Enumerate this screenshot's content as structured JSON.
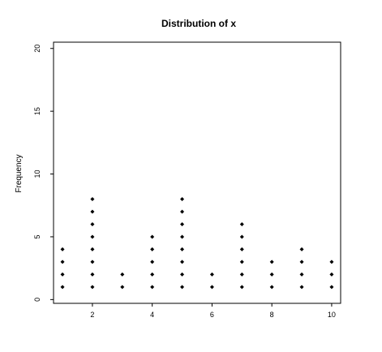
{
  "chart_data": {
    "type": "scatter",
    "subtype": "dot-plot",
    "title": "Distribution of x",
    "xlabel": "",
    "ylabel": "Frequency",
    "xlim": [
      0.7,
      10.3
    ],
    "ylim": [
      -0.3,
      20.5
    ],
    "x_ticks": [
      "2",
      "4",
      "6",
      "8",
      "10"
    ],
    "y_ticks": [
      "0",
      "5",
      "10",
      "15",
      "20"
    ],
    "grid": false,
    "legend": "none",
    "marker_color": "#000000",
    "counts": [
      {
        "x": 1,
        "count": 4
      },
      {
        "x": 2,
        "count": 8
      },
      {
        "x": 3,
        "count": 2
      },
      {
        "x": 4,
        "count": 5
      },
      {
        "x": 5,
        "count": 8
      },
      {
        "x": 6,
        "count": 2
      },
      {
        "x": 7,
        "count": 6
      },
      {
        "x": 8,
        "count": 3
      },
      {
        "x": 9,
        "count": 4
      },
      {
        "x": 10,
        "count": 3
      }
    ]
  }
}
